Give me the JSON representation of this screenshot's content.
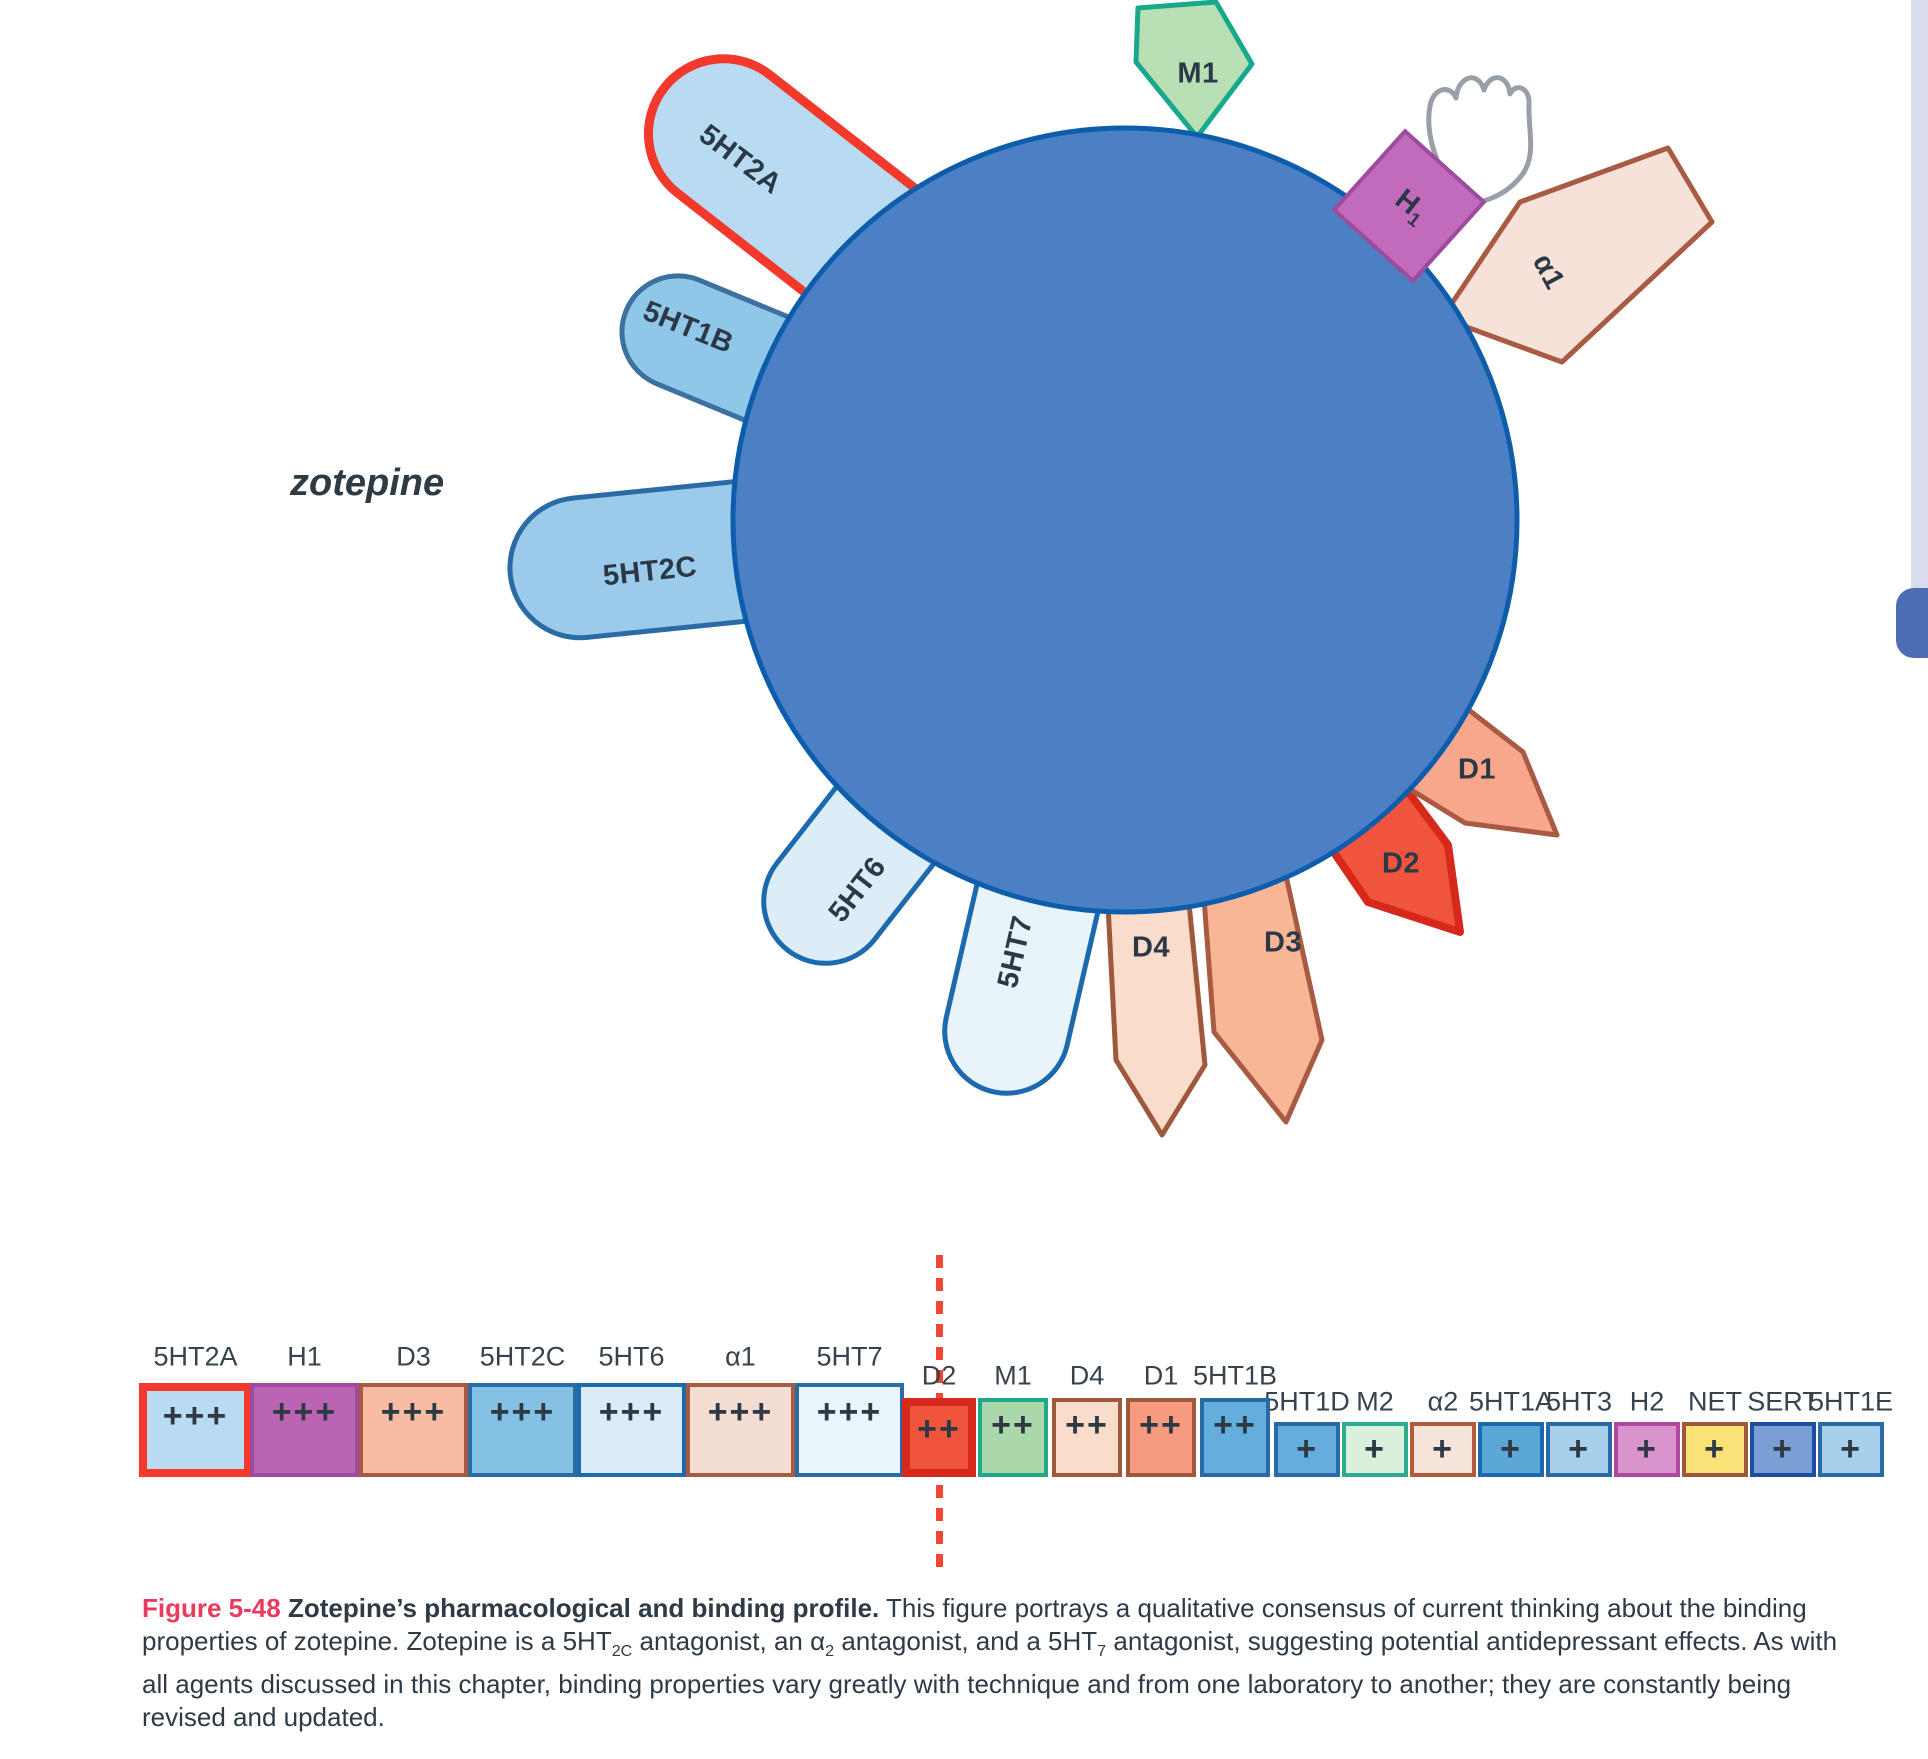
{
  "drug": {
    "name": "zotepine"
  },
  "diagram": {
    "arms": [
      {
        "label": "5HT2A",
        "fill": "#b8dbf2",
        "stroke": "#f2392b"
      },
      {
        "label": "5HT1B",
        "fill": "#8fc7e8",
        "stroke": "#3c70a0"
      },
      {
        "label": "5HT2C",
        "fill": "#9bcaeb",
        "stroke": "#2a6ba5"
      },
      {
        "label": "5HT6",
        "fill": "#dcedf8",
        "stroke": "#1c69ae"
      },
      {
        "label": "5HT7",
        "fill": "#e9f3fa",
        "stroke": "#1c69ae"
      },
      {
        "label": "D4",
        "fill": "#fadcca",
        "stroke": "#a0583c"
      },
      {
        "label": "D3",
        "fill": "#f8b697",
        "stroke": "#a85a42"
      },
      {
        "label": "D2",
        "fill": "#f1543c",
        "stroke": "#d7281c"
      },
      {
        "label": "D1",
        "fill": "#f8a68c",
        "stroke": "#a85a42"
      },
      {
        "label": "α1",
        "fill": "#f6e2d8",
        "stroke": "#a85a42"
      },
      {
        "label": "H",
        "sub": "1",
        "fill": "#c26abc",
        "stroke": "#9d4b9d"
      },
      {
        "label": "M1",
        "fill": "#b9e0b4",
        "stroke": "#18a98c"
      }
    ],
    "cell": {
      "fill": "#4b80c4",
      "stroke": "#0e5dad"
    },
    "glove_stroke": "#999fa8"
  },
  "binding_strip": {
    "threshold_color": "#f04632",
    "receptors": [
      {
        "label": "5HT2A",
        "strength": "+++",
        "fill": "#b8dbf2",
        "border": "#f2392b",
        "border_width": 8
      },
      {
        "label": "H1",
        "strength": "+++",
        "fill": "#bc64b4",
        "border": "#9d4b9d"
      },
      {
        "label": "D3",
        "strength": "+++",
        "fill": "#f8bca4",
        "border": "#a85a42"
      },
      {
        "label": "5HT2C",
        "strength": "+++",
        "fill": "#85c0e5",
        "border": "#2a6ba5"
      },
      {
        "label": "5HT6",
        "strength": "+++",
        "fill": "#d9ecf8",
        "border": "#1c69ae"
      },
      {
        "label": "α1",
        "strength": "+++",
        "fill": "#f3ddd2",
        "border": "#a85a42"
      },
      {
        "label": "5HT7",
        "strength": "+++",
        "fill": "#eaf4fb",
        "border": "#2a6ba5"
      },
      {
        "label": "D2",
        "strength": "++",
        "fill": "#f1543c",
        "border": "#d7281c",
        "border_width": 8
      },
      {
        "label": "M1",
        "strength": "++",
        "fill": "#abd8ab",
        "border": "#1fa98a"
      },
      {
        "label": "D4",
        "strength": "++",
        "fill": "#fadcca",
        "border": "#a0583c"
      },
      {
        "label": "D1",
        "strength": "++",
        "fill": "#f79b80",
        "border": "#a0583c"
      },
      {
        "label": "5HT1B",
        "strength": "++",
        "fill": "#64aedd",
        "border": "#2a6ba5"
      },
      {
        "label": "5HT1D",
        "strength": "+",
        "fill": "#64aedd",
        "border": "#2a6ba5"
      },
      {
        "label": "M2",
        "strength": "+",
        "fill": "#d9f0dc",
        "border": "#2cab8e"
      },
      {
        "label": "α2",
        "strength": "+",
        "fill": "#f7e4da",
        "border": "#b35a3e"
      },
      {
        "label": "5HT1A",
        "strength": "+",
        "fill": "#5aa7d8",
        "border": "#1c69ae"
      },
      {
        "label": "5HT3",
        "strength": "+",
        "fill": "#a8cfec",
        "border": "#2a6ba5"
      },
      {
        "label": "H2",
        "strength": "+",
        "fill": "#d993cd",
        "border": "#b0489f"
      },
      {
        "label": "NET",
        "strength": "+",
        "fill": "#fae178",
        "border": "#a0583c"
      },
      {
        "label": "SERT",
        "strength": "+",
        "fill": "#7a9fd4",
        "border": "#1d4f9e"
      },
      {
        "label": "5HT1E",
        "strength": "+",
        "fill": "#a8d0ec",
        "border": "#2a6ba5"
      }
    ]
  },
  "caption": {
    "segments": [
      {
        "t": "Figure 5-48",
        "cls": "fig"
      },
      {
        "t": "  "
      },
      {
        "t": "Zotepine’s pharmacological and binding profile.",
        "cls": "b"
      },
      {
        "t": "  This figure portrays a qualitative consensus of current thinking about the binding properties of zotepine. Zotepine is a 5HT"
      },
      {
        "t": "2C",
        "cls": "sub"
      },
      {
        "t": " antagonist, an α"
      },
      {
        "t": "2",
        "cls": "sub"
      },
      {
        "t": " antagonist, and a 5HT"
      },
      {
        "t": "7",
        "cls": "sub"
      },
      {
        "t": " antagonist, suggesting potential antidepressant effects. As with all agents discussed in this chapter, binding properties vary greatly with technique and from one laboratory to another; they are constantly being revised and updated."
      }
    ]
  }
}
